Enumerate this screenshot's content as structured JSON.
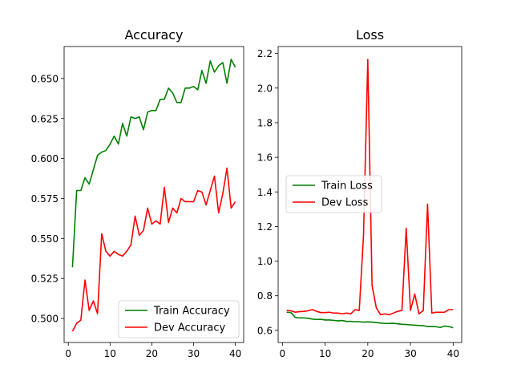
{
  "chart_data": [
    {
      "type": "line",
      "title": "Accuracy",
      "xlabel": "",
      "ylabel": "",
      "xlim": [
        -1,
        42
      ],
      "ylim": [
        0.485,
        0.67
      ],
      "xticks": [
        0,
        10,
        20,
        30,
        40
      ],
      "yticks": [
        0.5,
        0.525,
        0.55,
        0.575,
        0.6,
        0.625,
        0.65
      ],
      "ytick_labels": [
        "0.500",
        "0.525",
        "0.550",
        "0.575",
        "0.600",
        "0.625",
        "0.650"
      ],
      "grid": false,
      "legend": "lower-right",
      "x": [
        1,
        2,
        3,
        4,
        5,
        6,
        7,
        8,
        9,
        10,
        11,
        12,
        13,
        14,
        15,
        16,
        17,
        18,
        19,
        20,
        21,
        22,
        23,
        24,
        25,
        26,
        27,
        28,
        29,
        30,
        31,
        32,
        33,
        34,
        35,
        36,
        37,
        38,
        39,
        40
      ],
      "series": [
        {
          "name": "Train Accuracy",
          "color": "#008000",
          "values": [
            0.532,
            0.58,
            0.58,
            0.588,
            0.584,
            0.593,
            0.602,
            0.604,
            0.605,
            0.609,
            0.614,
            0.609,
            0.622,
            0.614,
            0.626,
            0.625,
            0.626,
            0.618,
            0.629,
            0.63,
            0.63,
            0.637,
            0.637,
            0.644,
            0.641,
            0.635,
            0.635,
            0.644,
            0.644,
            0.645,
            0.643,
            0.655,
            0.647,
            0.661,
            0.654,
            0.658,
            0.66,
            0.647,
            0.662,
            0.657
          ]
        },
        {
          "name": "Dev Accuracy",
          "color": "#ff0000",
          "values": [
            0.492,
            0.497,
            0.499,
            0.524,
            0.505,
            0.511,
            0.503,
            0.553,
            0.542,
            0.539,
            0.542,
            0.54,
            0.539,
            0.542,
            0.546,
            0.564,
            0.552,
            0.555,
            0.569,
            0.559,
            0.561,
            0.559,
            0.582,
            0.56,
            0.569,
            0.566,
            0.575,
            0.573,
            0.573,
            0.573,
            0.58,
            0.579,
            0.571,
            0.58,
            0.589,
            0.566,
            0.578,
            0.594,
            0.569,
            0.573
          ]
        }
      ]
    },
    {
      "type": "line",
      "title": "Loss",
      "xlabel": "",
      "ylabel": "",
      "xlim": [
        -1,
        42
      ],
      "ylim": [
        0.53,
        2.24
      ],
      "xticks": [
        0,
        10,
        20,
        30,
        40
      ],
      "yticks": [
        0.6,
        0.8,
        1.0,
        1.2,
        1.4,
        1.6,
        1.8,
        2.0,
        2.2
      ],
      "ytick_labels": [
        "0.6",
        "0.8",
        "1.0",
        "1.2",
        "1.4",
        "1.6",
        "1.8",
        "2.0",
        "2.2"
      ],
      "grid": false,
      "legend": "center-left",
      "x": [
        1,
        2,
        3,
        4,
        5,
        6,
        7,
        8,
        9,
        10,
        11,
        12,
        13,
        14,
        15,
        16,
        17,
        18,
        19,
        20,
        21,
        22,
        23,
        24,
        25,
        26,
        27,
        28,
        29,
        30,
        31,
        32,
        33,
        34,
        35,
        36,
        37,
        38,
        39,
        40
      ],
      "series": [
        {
          "name": "Train Loss",
          "color": "#008000",
          "values": [
            0.705,
            0.703,
            0.675,
            0.672,
            0.672,
            0.67,
            0.665,
            0.663,
            0.664,
            0.66,
            0.66,
            0.658,
            0.655,
            0.657,
            0.652,
            0.652,
            0.65,
            0.65,
            0.648,
            0.649,
            0.648,
            0.645,
            0.642,
            0.64,
            0.64,
            0.641,
            0.638,
            0.635,
            0.634,
            0.632,
            0.63,
            0.628,
            0.627,
            0.622,
            0.622,
            0.621,
            0.617,
            0.625,
            0.622,
            0.615
          ]
        },
        {
          "name": "Dev Loss",
          "color": "#ff0000",
          "values": [
            0.715,
            0.713,
            0.705,
            0.708,
            0.71,
            0.713,
            0.72,
            0.71,
            0.703,
            0.703,
            0.705,
            0.7,
            0.7,
            0.695,
            0.7,
            0.695,
            0.72,
            0.715,
            1.15,
            2.165,
            0.86,
            0.73,
            0.69,
            0.695,
            0.69,
            0.7,
            0.71,
            0.715,
            1.19,
            0.715,
            0.81,
            0.695,
            0.715,
            1.33,
            0.7,
            0.705,
            0.705,
            0.705,
            0.72,
            0.72
          ]
        }
      ]
    }
  ]
}
